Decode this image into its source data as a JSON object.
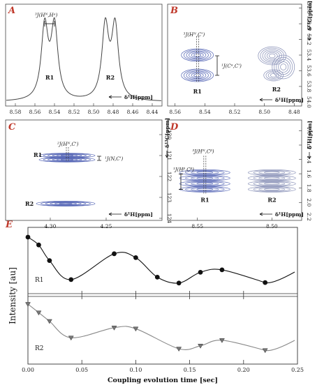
{
  "chart_data": [
    {
      "panel": "A",
      "type": "line",
      "annotation": "³J(Hᴺ,Hᵅ)",
      "peaks": [
        {
          "label": "R1",
          "x": [
            8.55,
            8.54
          ]
        },
        {
          "label": "R2",
          "x": [
            8.488,
            8.478
          ]
        }
      ],
      "xlabel": "δ¹H[ppm]",
      "xlim": [
        8.59,
        8.43
      ],
      "xticks": [
        "8.58",
        "8.56",
        "8.54",
        "8.52",
        "8.50",
        "8.48",
        "8.46",
        "8.44"
      ],
      "xtick_values": [
        8.58,
        8.56,
        8.54,
        8.52,
        8.5,
        8.48,
        8.46,
        8.44
      ]
    },
    {
      "panel": "B",
      "type": "contour",
      "annotations": [
        "³J(Hᴺ,C')",
        "¹J(Cᵅ,C')"
      ],
      "peaks": [
        {
          "label": "R1",
          "x": 8.545
        },
        {
          "label": "R2",
          "x": 8.492
        }
      ],
      "xlabel": "δ¹H[ppm]",
      "ylabel": "δ¹³C[ppm]",
      "xlim": [
        8.565,
        8.475
      ],
      "xticks": [
        "8.56",
        "8.54",
        "8.52",
        "8.50",
        "8.48"
      ],
      "xtick_values": [
        8.56,
        8.54,
        8.52,
        8.5,
        8.48
      ],
      "yticks": [
        "52.8",
        "53.0",
        "53.2",
        "53.4",
        "53.6",
        "53.8",
        "54.0"
      ],
      "ytick_values": [
        52.8,
        53.0,
        53.2,
        53.4,
        53.6,
        53.8,
        54.0
      ],
      "ylim": [
        52.75,
        54.05
      ]
    },
    {
      "panel": "C",
      "type": "contour",
      "annotations": [
        "²J(Hᴺ,C')",
        "¹J(N,C')"
      ],
      "peaks": [
        {
          "label": "R1",
          "x": 4.285,
          "y": 121.0
        },
        {
          "label": "R2",
          "x": 4.285,
          "y": 123.3
        }
      ],
      "xlabel": "δ¹H[ppm]",
      "ylabel": "δ¹³C[ppm]",
      "xlim": [
        4.34,
        4.2
      ],
      "xticks": [
        "4.30",
        "4.25"
      ],
      "xtick_values": [
        4.3,
        4.25
      ],
      "yticks": [
        "120",
        "121",
        "122",
        "123",
        "124"
      ],
      "ytick_values": [
        120,
        121,
        122,
        123,
        124
      ],
      "ylim": [
        119.3,
        124.1
      ]
    },
    {
      "panel": "D",
      "type": "contour",
      "annotations": [
        "³J(Hᴺ,Cᵝ)",
        "¹J(Hᵝ,Cᵝ)"
      ],
      "peaks": [
        {
          "label": "R1",
          "x": 8.545,
          "y": 1.7
        },
        {
          "label": "R2",
          "x": 8.5,
          "y": 1.7
        }
      ],
      "xlabel": "δ¹H[ppm]",
      "ylabel": "δ¹H[ppm]",
      "xlim": [
        8.57,
        8.48
      ],
      "xticks": [
        "8.55",
        "8.50"
      ],
      "xtick_values": [
        8.55,
        8.5
      ],
      "yticks": [
        "1.0",
        "1.2",
        "1.4",
        "1.6",
        "1.8",
        "2.0",
        "2.2"
      ],
      "ytick_values": [
        1.0,
        1.2,
        1.4,
        1.6,
        1.8,
        2.0,
        2.2
      ],
      "ylim": [
        0.85,
        2.25
      ]
    },
    {
      "panel": "E",
      "type": "scatter",
      "xlabel": "Coupling evolution time [sec]",
      "ylabel": "Intensity [au]",
      "xlim": [
        0,
        0.25
      ],
      "xticks": [
        "0.00",
        "0.05",
        "0.10",
        "0.15",
        "0.20",
        "0.25"
      ],
      "xtick_values": [
        0.0,
        0.05,
        0.1,
        0.15,
        0.2,
        0.25
      ],
      "series": [
        {
          "name": "R1",
          "marker": "circle",
          "color": "#111111",
          "x": [
            0.0,
            0.01,
            0.02,
            0.04,
            0.08,
            0.1,
            0.12,
            0.14,
            0.16,
            0.18,
            0.22
          ],
          "y": [
            1.0,
            0.84,
            0.52,
            0.13,
            0.66,
            0.58,
            0.18,
            0.06,
            0.28,
            0.33,
            0.07
          ]
        },
        {
          "name": "R2",
          "marker": "triangle",
          "color": "#888888",
          "x": [
            0.0,
            0.01,
            0.02,
            0.04,
            0.08,
            0.1,
            0.14,
            0.16,
            0.18,
            0.22
          ],
          "y": [
            1.0,
            0.83,
            0.66,
            0.33,
            0.53,
            0.51,
            0.11,
            0.17,
            0.28,
            0.08
          ]
        }
      ]
    }
  ]
}
